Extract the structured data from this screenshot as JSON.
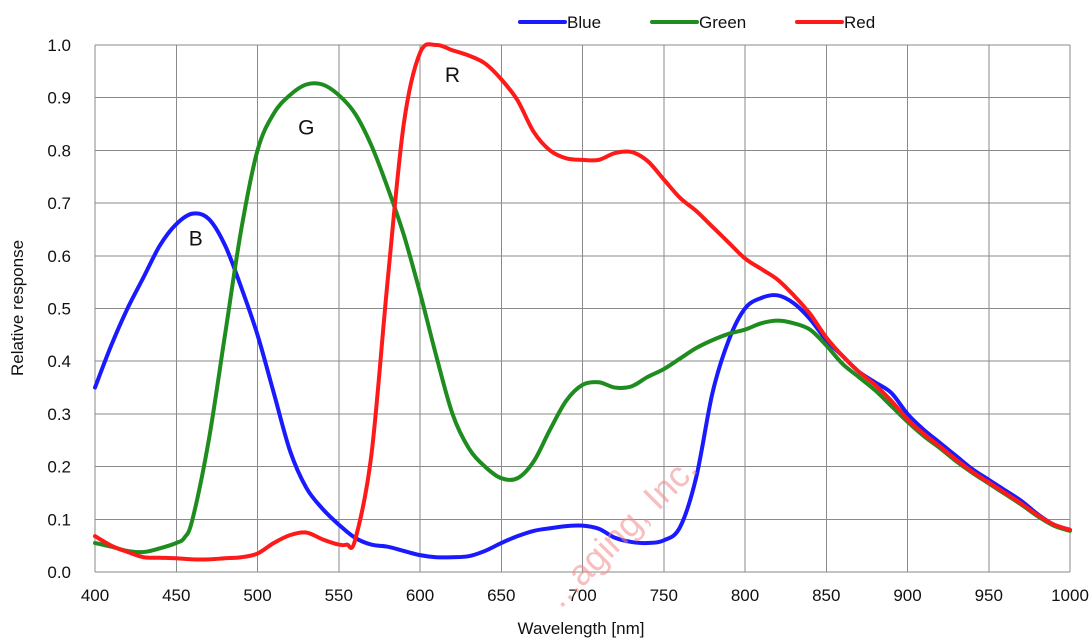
{
  "chart_data": {
    "type": "line",
    "title": "",
    "xlabel": "Wavelength [nm]",
    "ylabel": "Relative response",
    "xlim": [
      400,
      1000
    ],
    "ylim": [
      0,
      1.0
    ],
    "x_ticks": [
      400,
      450,
      500,
      550,
      600,
      650,
      700,
      750,
      800,
      850,
      900,
      950,
      1000
    ],
    "y_ticks": [
      0.0,
      0.1,
      0.2,
      0.3,
      0.4,
      0.5,
      0.6,
      0.7,
      0.8,
      0.9,
      1.0
    ],
    "y_tick_labels": [
      "0.0",
      "0.1",
      "0.2",
      "0.3",
      "0.4",
      "0.5",
      "0.6",
      "0.7",
      "0.8",
      "0.9",
      "1.0"
    ],
    "grid": true,
    "legend_position": "top-right",
    "series": [
      {
        "name": "Blue",
        "color": "#1a1aff",
        "points": [
          [
            400,
            0.35
          ],
          [
            410,
            0.43
          ],
          [
            420,
            0.5
          ],
          [
            430,
            0.56
          ],
          [
            440,
            0.62
          ],
          [
            450,
            0.66
          ],
          [
            460,
            0.68
          ],
          [
            470,
            0.67
          ],
          [
            480,
            0.62
          ],
          [
            490,
            0.54
          ],
          [
            500,
            0.45
          ],
          [
            510,
            0.34
          ],
          [
            520,
            0.23
          ],
          [
            530,
            0.16
          ],
          [
            540,
            0.12
          ],
          [
            550,
            0.09
          ],
          [
            560,
            0.065
          ],
          [
            570,
            0.052
          ],
          [
            580,
            0.048
          ],
          [
            590,
            0.04
          ],
          [
            600,
            0.032
          ],
          [
            610,
            0.028
          ],
          [
            620,
            0.028
          ],
          [
            630,
            0.03
          ],
          [
            640,
            0.04
          ],
          [
            650,
            0.055
          ],
          [
            660,
            0.068
          ],
          [
            670,
            0.078
          ],
          [
            680,
            0.083
          ],
          [
            690,
            0.087
          ],
          [
            700,
            0.088
          ],
          [
            710,
            0.082
          ],
          [
            720,
            0.065
          ],
          [
            730,
            0.057
          ],
          [
            740,
            0.055
          ],
          [
            750,
            0.06
          ],
          [
            760,
            0.085
          ],
          [
            770,
            0.18
          ],
          [
            780,
            0.34
          ],
          [
            790,
            0.44
          ],
          [
            800,
            0.5
          ],
          [
            810,
            0.52
          ],
          [
            820,
            0.525
          ],
          [
            830,
            0.51
          ],
          [
            840,
            0.48
          ],
          [
            850,
            0.44
          ],
          [
            860,
            0.41
          ],
          [
            870,
            0.38
          ],
          [
            880,
            0.36
          ],
          [
            890,
            0.34
          ],
          [
            900,
            0.3
          ],
          [
            910,
            0.27
          ],
          [
            920,
            0.245
          ],
          [
            930,
            0.22
          ],
          [
            940,
            0.195
          ],
          [
            950,
            0.175
          ],
          [
            960,
            0.155
          ],
          [
            970,
            0.135
          ],
          [
            980,
            0.11
          ],
          [
            990,
            0.09
          ],
          [
            1000,
            0.08
          ]
        ]
      },
      {
        "name": "Green",
        "color": "#1e8c1e",
        "points": [
          [
            400,
            0.055
          ],
          [
            410,
            0.048
          ],
          [
            420,
            0.04
          ],
          [
            430,
            0.038
          ],
          [
            440,
            0.045
          ],
          [
            450,
            0.055
          ],
          [
            455,
            0.065
          ],
          [
            460,
            0.1
          ],
          [
            470,
            0.25
          ],
          [
            480,
            0.45
          ],
          [
            490,
            0.65
          ],
          [
            500,
            0.8
          ],
          [
            510,
            0.87
          ],
          [
            520,
            0.905
          ],
          [
            530,
            0.925
          ],
          [
            540,
            0.925
          ],
          [
            550,
            0.905
          ],
          [
            560,
            0.87
          ],
          [
            570,
            0.81
          ],
          [
            580,
            0.73
          ],
          [
            590,
            0.64
          ],
          [
            600,
            0.53
          ],
          [
            610,
            0.41
          ],
          [
            620,
            0.3
          ],
          [
            630,
            0.235
          ],
          [
            640,
            0.2
          ],
          [
            650,
            0.178
          ],
          [
            660,
            0.178
          ],
          [
            670,
            0.21
          ],
          [
            680,
            0.27
          ],
          [
            690,
            0.325
          ],
          [
            700,
            0.355
          ],
          [
            710,
            0.36
          ],
          [
            720,
            0.35
          ],
          [
            730,
            0.352
          ],
          [
            740,
            0.37
          ],
          [
            750,
            0.385
          ],
          [
            760,
            0.405
          ],
          [
            770,
            0.425
          ],
          [
            780,
            0.44
          ],
          [
            790,
            0.452
          ],
          [
            800,
            0.46
          ],
          [
            810,
            0.472
          ],
          [
            820,
            0.477
          ],
          [
            830,
            0.472
          ],
          [
            840,
            0.46
          ],
          [
            850,
            0.43
          ],
          [
            860,
            0.395
          ],
          [
            870,
            0.37
          ],
          [
            880,
            0.345
          ],
          [
            890,
            0.315
          ],
          [
            900,
            0.285
          ],
          [
            910,
            0.258
          ],
          [
            920,
            0.235
          ],
          [
            930,
            0.21
          ],
          [
            940,
            0.188
          ],
          [
            950,
            0.168
          ],
          [
            960,
            0.148
          ],
          [
            970,
            0.128
          ],
          [
            980,
            0.106
          ],
          [
            990,
            0.088
          ],
          [
            1000,
            0.078
          ]
        ]
      },
      {
        "name": "Red",
        "color": "#ff1a1a",
        "points": [
          [
            400,
            0.068
          ],
          [
            410,
            0.05
          ],
          [
            420,
            0.038
          ],
          [
            430,
            0.028
          ],
          [
            440,
            0.027
          ],
          [
            450,
            0.026
          ],
          [
            460,
            0.024
          ],
          [
            470,
            0.024
          ],
          [
            480,
            0.026
          ],
          [
            490,
            0.028
          ],
          [
            500,
            0.035
          ],
          [
            510,
            0.055
          ],
          [
            520,
            0.07
          ],
          [
            530,
            0.075
          ],
          [
            540,
            0.062
          ],
          [
            550,
            0.052
          ],
          [
            555,
            0.052
          ],
          [
            560,
            0.06
          ],
          [
            570,
            0.22
          ],
          [
            580,
            0.55
          ],
          [
            590,
            0.85
          ],
          [
            600,
            0.985
          ],
          [
            610,
            1.0
          ],
          [
            620,
            0.99
          ],
          [
            630,
            0.98
          ],
          [
            640,
            0.965
          ],
          [
            650,
            0.935
          ],
          [
            660,
            0.895
          ],
          [
            670,
            0.835
          ],
          [
            680,
            0.8
          ],
          [
            690,
            0.785
          ],
          [
            700,
            0.782
          ],
          [
            710,
            0.782
          ],
          [
            720,
            0.795
          ],
          [
            730,
            0.797
          ],
          [
            740,
            0.78
          ],
          [
            750,
            0.745
          ],
          [
            760,
            0.71
          ],
          [
            770,
            0.685
          ],
          [
            780,
            0.655
          ],
          [
            790,
            0.625
          ],
          [
            800,
            0.595
          ],
          [
            810,
            0.575
          ],
          [
            820,
            0.555
          ],
          [
            830,
            0.525
          ],
          [
            840,
            0.49
          ],
          [
            850,
            0.445
          ],
          [
            860,
            0.41
          ],
          [
            870,
            0.38
          ],
          [
            880,
            0.355
          ],
          [
            890,
            0.325
          ],
          [
            900,
            0.29
          ],
          [
            910,
            0.262
          ],
          [
            920,
            0.238
          ],
          [
            930,
            0.213
          ],
          [
            940,
            0.19
          ],
          [
            950,
            0.17
          ],
          [
            960,
            0.15
          ],
          [
            970,
            0.13
          ],
          [
            980,
            0.108
          ],
          [
            990,
            0.09
          ],
          [
            1000,
            0.08
          ]
        ]
      }
    ],
    "annotations": [
      {
        "text": "B",
        "x": 462,
        "y": 0.62
      },
      {
        "text": "G",
        "x": 530,
        "y": 0.83
      },
      {
        "text": "R",
        "x": 620,
        "y": 0.93
      }
    ]
  },
  "watermark": {
    "text": "...aging, Inc."
  }
}
